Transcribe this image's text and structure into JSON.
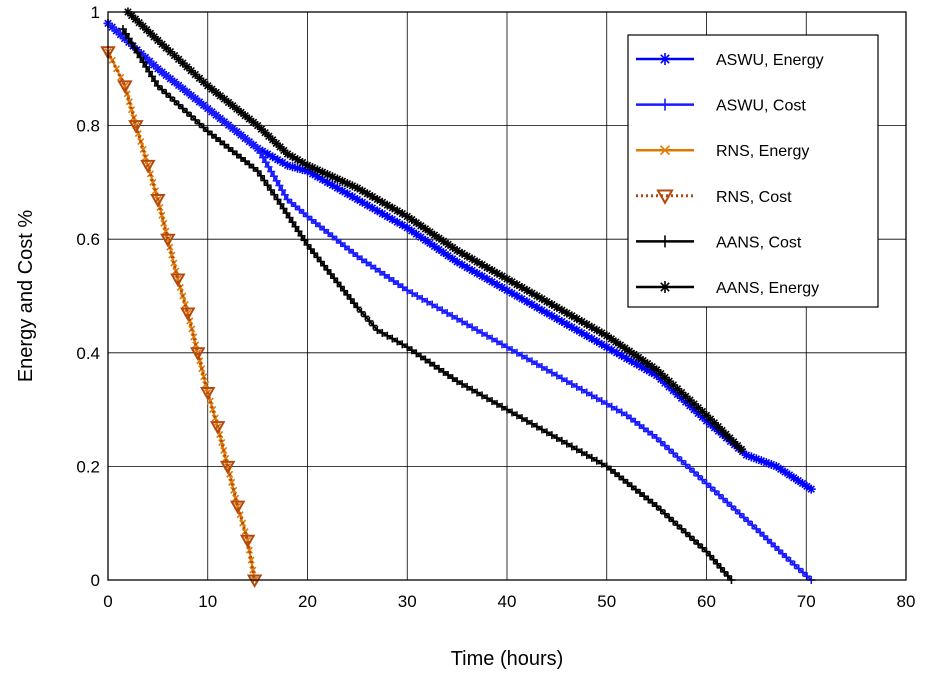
{
  "chart_data": {
    "type": "line",
    "title": "",
    "xlabel": "Time (hours)",
    "ylabel": "Energy and Cost  %",
    "xlim": [
      0,
      80
    ],
    "ylim": [
      0,
      1
    ],
    "xticks": [
      0,
      10,
      20,
      30,
      40,
      50,
      60,
      70,
      80
    ],
    "yticks": [
      0,
      0.2,
      0.4,
      0.6,
      0.8,
      1
    ],
    "xtick_labels": [
      "0",
      "10",
      "20",
      "30",
      "40",
      "50",
      "60",
      "70",
      "80"
    ],
    "ytick_labels": [
      "0",
      "0.2",
      "0.4",
      "0.6",
      "0.8",
      "1"
    ],
    "grid": true,
    "legend_position": "top-right",
    "series": [
      {
        "name": "ASWU, Energy",
        "color": "#0000ff",
        "marker": "asterisk",
        "line_style": "solid",
        "x": [
          0,
          5,
          10,
          15,
          18,
          20,
          25,
          30,
          35,
          40,
          45,
          50,
          52,
          55,
          60,
          64,
          67,
          70.5
        ],
        "y": [
          0.98,
          0.9,
          0.83,
          0.76,
          0.73,
          0.72,
          0.67,
          0.62,
          0.56,
          0.51,
          0.46,
          0.41,
          0.39,
          0.36,
          0.28,
          0.22,
          0.2,
          0.16
        ]
      },
      {
        "name": "ASWU, Cost",
        "color": "#1a1aff",
        "marker": "plus",
        "line_style": "solid",
        "x": [
          0,
          5,
          10,
          15,
          18,
          20,
          25,
          30,
          35,
          40,
          45,
          50,
          52,
          55,
          60,
          65,
          68,
          70.5
        ],
        "y": [
          0.98,
          0.9,
          0.83,
          0.76,
          0.67,
          0.64,
          0.57,
          0.51,
          0.46,
          0.41,
          0.36,
          0.31,
          0.29,
          0.25,
          0.17,
          0.09,
          0.04,
          0.0
        ]
      },
      {
        "name": "RNS, Energy",
        "color": "#e07b00",
        "marker": "x",
        "line_style": "solid",
        "x": [
          0,
          1.7,
          2.8,
          4.0,
          5.0,
          6.0,
          7.0,
          8.0,
          9.0,
          10.0,
          11.0,
          12.0,
          13.0,
          14.0,
          14.7
        ],
        "y": [
          0.93,
          0.87,
          0.8,
          0.73,
          0.67,
          0.6,
          0.53,
          0.47,
          0.4,
          0.33,
          0.27,
          0.2,
          0.13,
          0.07,
          0.0
        ]
      },
      {
        "name": "RNS, Cost",
        "color": "#b5480f",
        "marker": "triangle-down",
        "line_style": "dotted",
        "x": [
          0,
          1.7,
          2.8,
          4.0,
          5.0,
          6.0,
          7.0,
          8.0,
          9.0,
          10.0,
          11.0,
          12.0,
          13.0,
          14.0,
          14.7
        ],
        "y": [
          0.93,
          0.87,
          0.8,
          0.73,
          0.67,
          0.6,
          0.53,
          0.47,
          0.4,
          0.33,
          0.27,
          0.2,
          0.13,
          0.07,
          0.0
        ]
      },
      {
        "name": "AANS, Cost",
        "color": "#000000",
        "marker": "plus",
        "line_style": "solid",
        "x": [
          1.5,
          5,
          10,
          15,
          17,
          20,
          25,
          27,
          30,
          35,
          40,
          45,
          50,
          55,
          60,
          62.5
        ],
        "y": [
          0.97,
          0.87,
          0.79,
          0.72,
          0.67,
          0.59,
          0.48,
          0.44,
          0.41,
          0.35,
          0.3,
          0.25,
          0.2,
          0.13,
          0.05,
          0.0
        ]
      },
      {
        "name": "AANS, Energy",
        "color": "#000000",
        "marker": "asterisk",
        "line_style": "solid",
        "x": [
          2,
          5,
          10,
          15,
          18,
          20,
          25,
          30,
          35,
          40,
          45,
          50,
          55,
          60,
          63.5
        ],
        "y": [
          1.0,
          0.95,
          0.87,
          0.8,
          0.75,
          0.73,
          0.69,
          0.64,
          0.58,
          0.53,
          0.48,
          0.43,
          0.37,
          0.29,
          0.23
        ]
      }
    ]
  }
}
